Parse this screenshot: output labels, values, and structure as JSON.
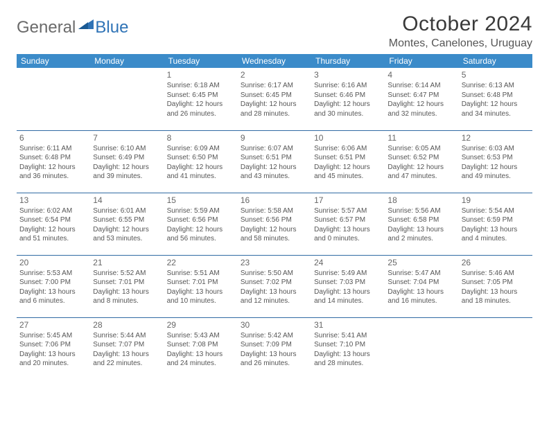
{
  "brand": {
    "text1": "General",
    "text2": "Blue"
  },
  "title": "October 2024",
  "location": "Montes, Canelones, Uruguay",
  "columns": [
    "Sunday",
    "Monday",
    "Tuesday",
    "Wednesday",
    "Thursday",
    "Friday",
    "Saturday"
  ],
  "colors": {
    "header_bg": "#3b8bc9",
    "header_text": "#ffffff",
    "row_border": "#2f6aa3",
    "body_text": "#555555",
    "brand_grey": "#6a6a6a",
    "brand_blue": "#2f73b6"
  },
  "weeks": [
    [
      null,
      null,
      {
        "d": "1",
        "sr": "6:18 AM",
        "ss": "6:45 PM",
        "dl": "12 hours and 26 minutes."
      },
      {
        "d": "2",
        "sr": "6:17 AM",
        "ss": "6:45 PM",
        "dl": "12 hours and 28 minutes."
      },
      {
        "d": "3",
        "sr": "6:16 AM",
        "ss": "6:46 PM",
        "dl": "12 hours and 30 minutes."
      },
      {
        "d": "4",
        "sr": "6:14 AM",
        "ss": "6:47 PM",
        "dl": "12 hours and 32 minutes."
      },
      {
        "d": "5",
        "sr": "6:13 AM",
        "ss": "6:48 PM",
        "dl": "12 hours and 34 minutes."
      }
    ],
    [
      {
        "d": "6",
        "sr": "6:11 AM",
        "ss": "6:48 PM",
        "dl": "12 hours and 36 minutes."
      },
      {
        "d": "7",
        "sr": "6:10 AM",
        "ss": "6:49 PM",
        "dl": "12 hours and 39 minutes."
      },
      {
        "d": "8",
        "sr": "6:09 AM",
        "ss": "6:50 PM",
        "dl": "12 hours and 41 minutes."
      },
      {
        "d": "9",
        "sr": "6:07 AM",
        "ss": "6:51 PM",
        "dl": "12 hours and 43 minutes."
      },
      {
        "d": "10",
        "sr": "6:06 AM",
        "ss": "6:51 PM",
        "dl": "12 hours and 45 minutes."
      },
      {
        "d": "11",
        "sr": "6:05 AM",
        "ss": "6:52 PM",
        "dl": "12 hours and 47 minutes."
      },
      {
        "d": "12",
        "sr": "6:03 AM",
        "ss": "6:53 PM",
        "dl": "12 hours and 49 minutes."
      }
    ],
    [
      {
        "d": "13",
        "sr": "6:02 AM",
        "ss": "6:54 PM",
        "dl": "12 hours and 51 minutes."
      },
      {
        "d": "14",
        "sr": "6:01 AM",
        "ss": "6:55 PM",
        "dl": "12 hours and 53 minutes."
      },
      {
        "d": "15",
        "sr": "5:59 AM",
        "ss": "6:56 PM",
        "dl": "12 hours and 56 minutes."
      },
      {
        "d": "16",
        "sr": "5:58 AM",
        "ss": "6:56 PM",
        "dl": "12 hours and 58 minutes."
      },
      {
        "d": "17",
        "sr": "5:57 AM",
        "ss": "6:57 PM",
        "dl": "13 hours and 0 minutes."
      },
      {
        "d": "18",
        "sr": "5:56 AM",
        "ss": "6:58 PM",
        "dl": "13 hours and 2 minutes."
      },
      {
        "d": "19",
        "sr": "5:54 AM",
        "ss": "6:59 PM",
        "dl": "13 hours and 4 minutes."
      }
    ],
    [
      {
        "d": "20",
        "sr": "5:53 AM",
        "ss": "7:00 PM",
        "dl": "13 hours and 6 minutes."
      },
      {
        "d": "21",
        "sr": "5:52 AM",
        "ss": "7:01 PM",
        "dl": "13 hours and 8 minutes."
      },
      {
        "d": "22",
        "sr": "5:51 AM",
        "ss": "7:01 PM",
        "dl": "13 hours and 10 minutes."
      },
      {
        "d": "23",
        "sr": "5:50 AM",
        "ss": "7:02 PM",
        "dl": "13 hours and 12 minutes."
      },
      {
        "d": "24",
        "sr": "5:49 AM",
        "ss": "7:03 PM",
        "dl": "13 hours and 14 minutes."
      },
      {
        "d": "25",
        "sr": "5:47 AM",
        "ss": "7:04 PM",
        "dl": "13 hours and 16 minutes."
      },
      {
        "d": "26",
        "sr": "5:46 AM",
        "ss": "7:05 PM",
        "dl": "13 hours and 18 minutes."
      }
    ],
    [
      {
        "d": "27",
        "sr": "5:45 AM",
        "ss": "7:06 PM",
        "dl": "13 hours and 20 minutes."
      },
      {
        "d": "28",
        "sr": "5:44 AM",
        "ss": "7:07 PM",
        "dl": "13 hours and 22 minutes."
      },
      {
        "d": "29",
        "sr": "5:43 AM",
        "ss": "7:08 PM",
        "dl": "13 hours and 24 minutes."
      },
      {
        "d": "30",
        "sr": "5:42 AM",
        "ss": "7:09 PM",
        "dl": "13 hours and 26 minutes."
      },
      {
        "d": "31",
        "sr": "5:41 AM",
        "ss": "7:10 PM",
        "dl": "13 hours and 28 minutes."
      },
      null,
      null
    ]
  ],
  "labels": {
    "sunrise": "Sunrise: ",
    "sunset": "Sunset: ",
    "daylight": "Daylight: "
  }
}
